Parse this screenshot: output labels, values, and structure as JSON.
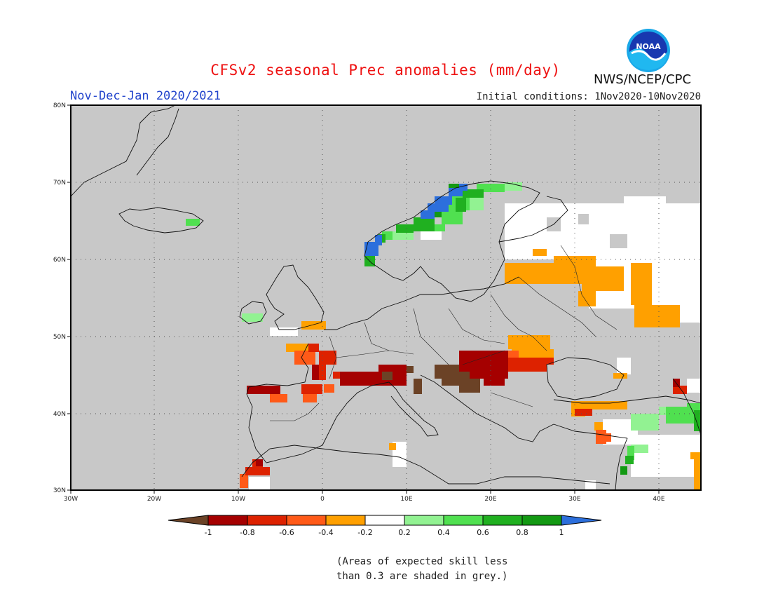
{
  "header": {
    "title": "CFSv2 seasonal Prec anomalies (mm/day)",
    "season": "Nov-Dec-Jan 2020/2021",
    "init_conditions": "Initial conditions: 1Nov2020-10Nov2020",
    "agency": "NWS/NCEP/CPC",
    "logo_text": "NOAA"
  },
  "map": {
    "lon_range": [
      -30,
      45
    ],
    "lat_range": [
      30,
      80
    ],
    "lon_labels": [
      "30W",
      "20W",
      "10W",
      "0",
      "10E",
      "20E",
      "30E",
      "40E"
    ],
    "lat_labels": [
      "80N",
      "70N",
      "60N",
      "50N",
      "40N",
      "30N"
    ]
  },
  "colorbar": {
    "tick_labels": [
      "-1",
      "-0.8",
      "-0.6",
      "-0.4",
      "-0.2",
      "0.2",
      "0.4",
      "0.6",
      "0.8",
      "1"
    ],
    "colors": [
      "#6b4226",
      "#a50000",
      "#dd2200",
      "#ff5a18",
      "#ffa000",
      "#ffffff",
      "#92f292",
      "#50e050",
      "#20b020",
      "#139913",
      "#2c6fdc"
    ]
  },
  "note": {
    "line1": "(Areas of expected skill less",
    "line2": "than 0.3 are shaded in grey.)"
  },
  "colors": {
    "grey_mask": "#c8c8c8",
    "title_red": "#ee1111",
    "season_blue": "#2244cc"
  }
}
